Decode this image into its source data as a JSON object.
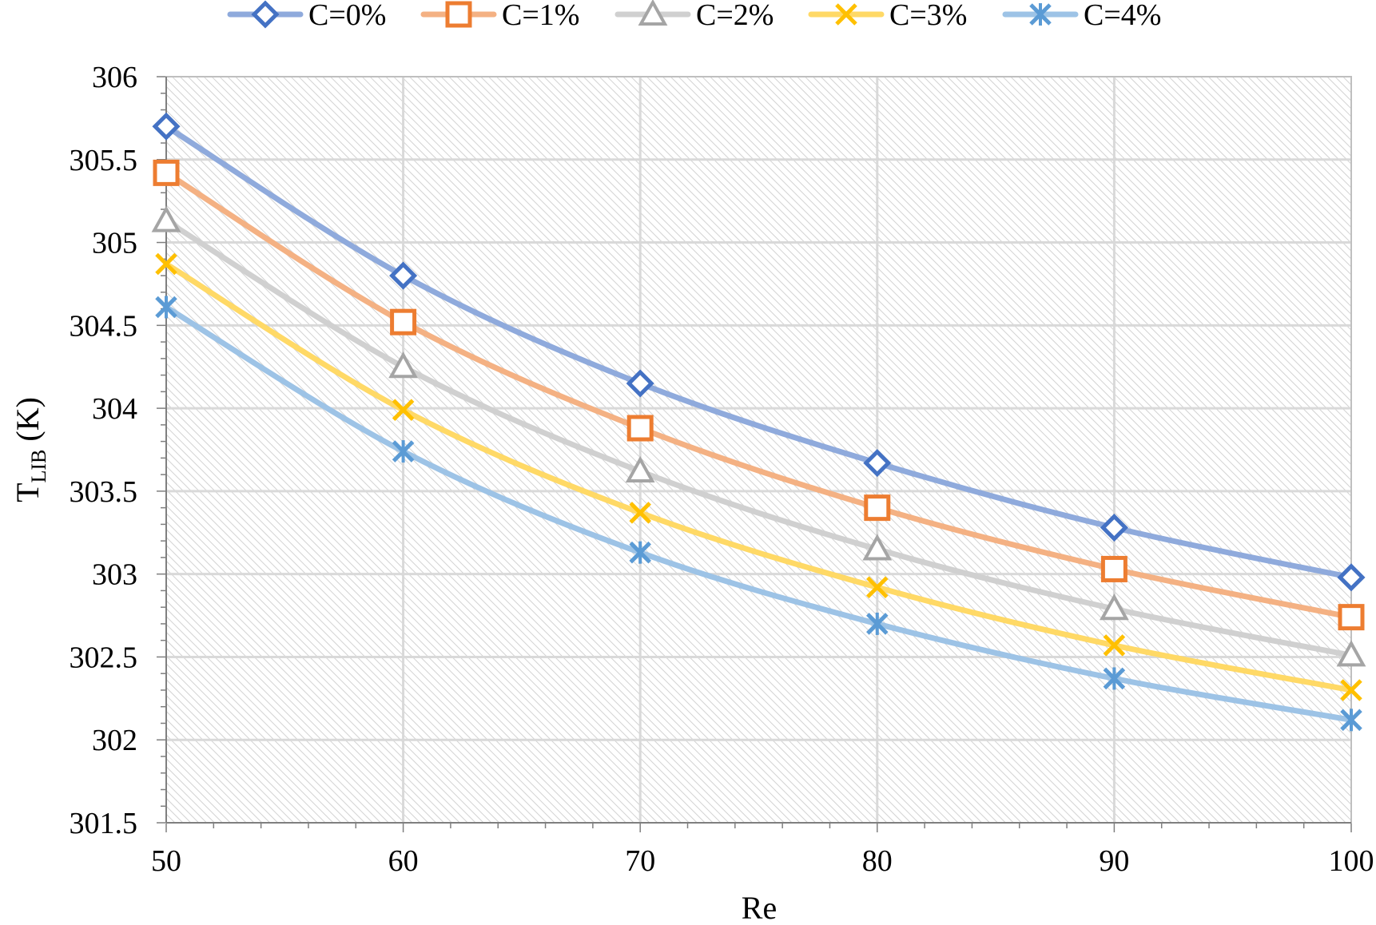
{
  "chart_data": {
    "type": "line",
    "title": "",
    "xlabel": "Re",
    "ylabel": {
      "main": "T",
      "sub": "LIB",
      "unit": " (K)"
    },
    "x": [
      50,
      60,
      70,
      80,
      90,
      100
    ],
    "xlim": [
      50,
      100
    ],
    "ylim": [
      301.5,
      306
    ],
    "xticks": [
      "50",
      "60",
      "70",
      "80",
      "90",
      "100"
    ],
    "yticks": [
      "301.5",
      "302",
      "302.5",
      "303",
      "303.5",
      "304",
      "304.5",
      "305",
      "305.5",
      "306"
    ],
    "grid": true,
    "legend_position": "top",
    "series": [
      {
        "name": "C=0%",
        "marker": "diamond",
        "line_color": "#8FAADC",
        "marker_color": "#4472C4",
        "values": [
          305.7,
          304.8,
          304.15,
          303.67,
          303.28,
          302.98
        ]
      },
      {
        "name": "C=1%",
        "marker": "square",
        "line_color": "#F4B183",
        "marker_color": "#ED7D31",
        "values": [
          305.42,
          304.52,
          303.88,
          303.4,
          303.03,
          302.74
        ]
      },
      {
        "name": "C=2%",
        "marker": "triangle",
        "line_color": "#D0D0D0",
        "marker_color": "#A5A5A5",
        "values": [
          305.13,
          304.25,
          303.62,
          303.15,
          302.79,
          302.51
        ]
      },
      {
        "name": "C=3%",
        "marker": "x",
        "line_color": "#FFD966",
        "marker_color": "#FFC000",
        "values": [
          304.87,
          303.99,
          303.37,
          302.92,
          302.57,
          302.3
        ]
      },
      {
        "name": "C=4%",
        "marker": "asterisk",
        "line_color": "#9DC3E6",
        "marker_color": "#5B9BD5",
        "values": [
          304.61,
          303.74,
          303.13,
          302.7,
          302.37,
          302.12
        ]
      }
    ]
  }
}
